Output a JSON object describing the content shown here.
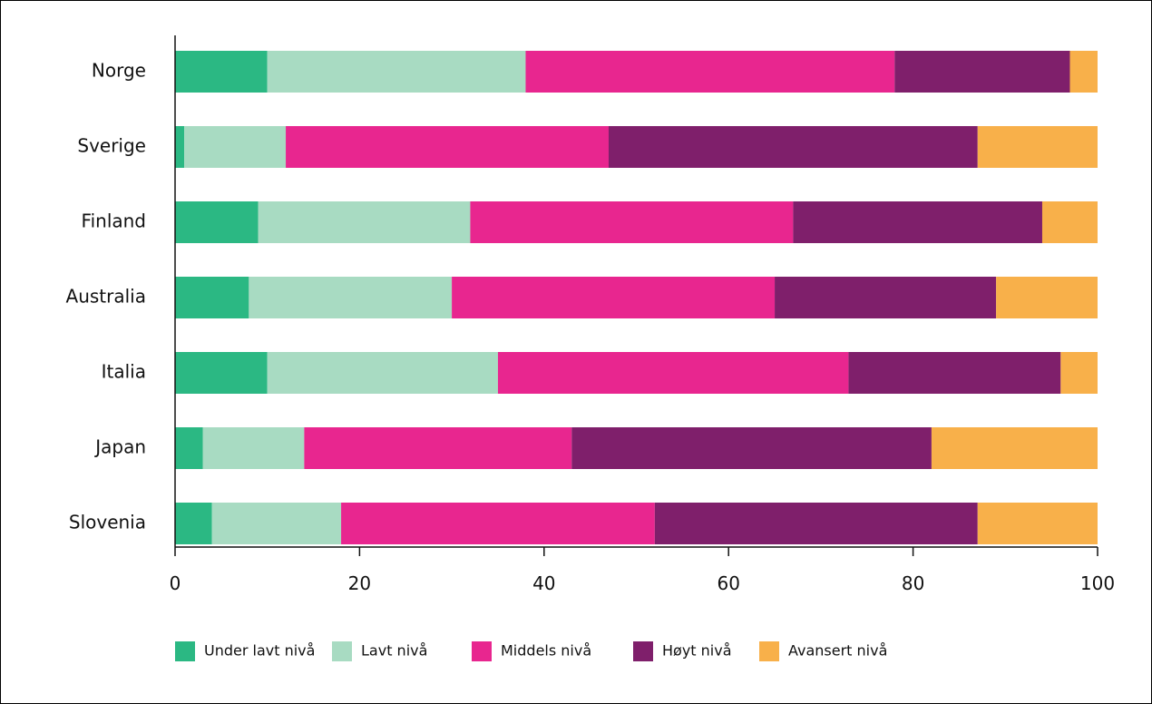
{
  "chart_data": {
    "type": "bar",
    "orientation": "horizontal",
    "stacked": true,
    "categories": [
      "Norge",
      "Sverige",
      "Finland",
      "Australia",
      "Italia",
      "Japan",
      "Slovenia"
    ],
    "series": [
      {
        "name": "Under lavt nivå",
        "color": "#2bb883",
        "values": [
          10,
          1,
          9,
          8,
          10,
          3,
          4
        ]
      },
      {
        "name": "Lavt nivå",
        "color": "#a8dbc2",
        "values": [
          28,
          11,
          23,
          22,
          25,
          11,
          14
        ]
      },
      {
        "name": "Middels nivå",
        "color": "#e8268f",
        "values": [
          40,
          35,
          35,
          35,
          38,
          29,
          34
        ]
      },
      {
        "name": "Høyt nivå",
        "color": "#7f1f6b",
        "values": [
          19,
          40,
          27,
          24,
          23,
          39,
          35
        ]
      },
      {
        "name": "Avansert nivå",
        "color": "#f8b04a",
        "values": [
          3,
          13,
          6,
          11,
          4,
          18,
          13
        ]
      }
    ],
    "xlim": [
      0,
      100
    ],
    "xticks": [
      "0",
      "20",
      "40",
      "60",
      "80",
      "100"
    ],
    "title": "",
    "xlabel": "",
    "ylabel": "",
    "grid": false,
    "legend_position": "bottom-left"
  }
}
